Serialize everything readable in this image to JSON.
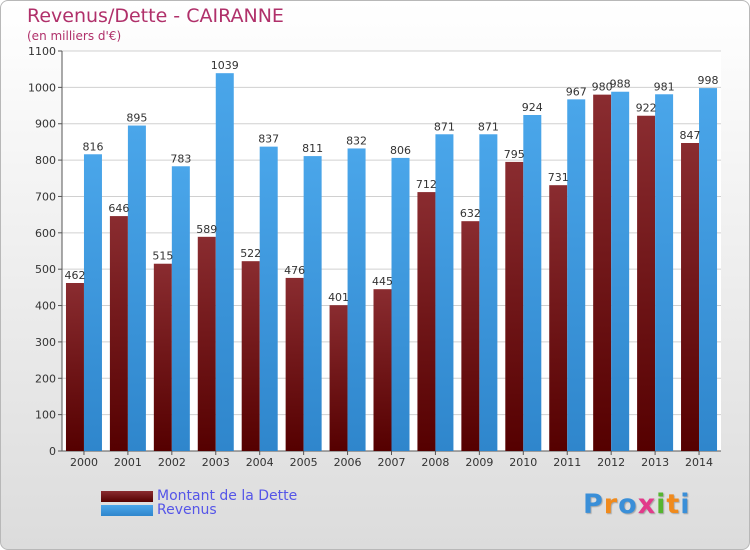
{
  "title": "Revenus/Dette - CAIRANNE",
  "subtitle": "(en milliers d'€)",
  "logo": {
    "text": "Proxiti",
    "letters": [
      "P",
      "r",
      "o",
      "x",
      "i",
      "t",
      "i"
    ],
    "colors": [
      "#3a8fd8",
      "#f08a1c",
      "#3a8fd8",
      "#e23a8a",
      "#55b530",
      "#f08a1c",
      "#3a8fd8"
    ]
  },
  "colors": {
    "dette": "#7a1e24",
    "revenus": "#3a9ae0",
    "title": "#b0306a",
    "legend_text": "#5555e8"
  },
  "chart_data": {
    "type": "bar",
    "categories": [
      "2000",
      "2001",
      "2002",
      "2003",
      "2004",
      "2005",
      "2006",
      "2007",
      "2008",
      "2009",
      "2010",
      "2011",
      "2012",
      "2013",
      "2014"
    ],
    "series": [
      {
        "name": "Montant de la Dette",
        "values": [
          462,
          646,
          515,
          589,
          522,
          476,
          401,
          445,
          712,
          632,
          795,
          731,
          980,
          922,
          847
        ]
      },
      {
        "name": "Revenus",
        "values": [
          816,
          895,
          783,
          1039,
          837,
          811,
          832,
          806,
          871,
          871,
          924,
          967,
          988,
          981,
          998
        ]
      }
    ],
    "ylim": [
      0,
      1100
    ],
    "yticks": [
      0,
      100,
      200,
      300,
      400,
      500,
      600,
      700,
      800,
      900,
      1000,
      1100
    ],
    "grid": true,
    "legend": "bottom-left"
  }
}
